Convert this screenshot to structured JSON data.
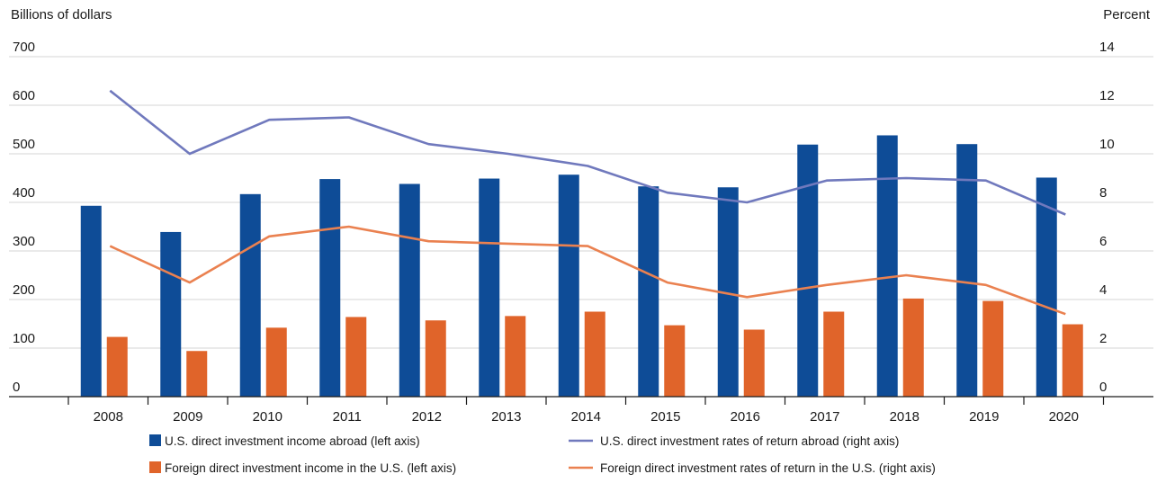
{
  "chart_data": {
    "type": "bar",
    "left_axis_title": "Billions of dollars",
    "right_axis_title": "Percent",
    "categories": [
      "2008",
      "2009",
      "2010",
      "2011",
      "2012",
      "2013",
      "2014",
      "2015",
      "2016",
      "2017",
      "2018",
      "2019",
      "2020"
    ],
    "left_ylim": [
      0,
      700
    ],
    "left_ticks": [
      "0",
      "100",
      "200",
      "300",
      "400",
      "500",
      "600",
      "700"
    ],
    "right_ylim": [
      0,
      14
    ],
    "right_ticks": [
      "0",
      "2",
      "4",
      "6",
      "8",
      "10",
      "12",
      "14"
    ],
    "grid": true,
    "legend_position": "bottom",
    "series": [
      {
        "name": "U.S. direct investment income abroad (left axis)",
        "kind": "bar",
        "axis": "left",
        "color": "#0e4c97",
        "values": [
          393,
          339,
          417,
          448,
          438,
          449,
          457,
          433,
          431,
          519,
          538,
          520,
          451
        ]
      },
      {
        "name": "Foreign direct investment income in the U.S. (left axis)",
        "kind": "bar",
        "axis": "left",
        "color": "#e0642a",
        "values": [
          123,
          94,
          142,
          164,
          157,
          166,
          175,
          147,
          138,
          175,
          202,
          197,
          149
        ]
      },
      {
        "name": "U.S. direct investment rates of return abroad (right axis)",
        "kind": "line",
        "axis": "right",
        "color": "#7079bd",
        "values": [
          12.6,
          10.0,
          11.4,
          11.5,
          10.4,
          10.0,
          9.5,
          8.4,
          8.0,
          8.9,
          9.0,
          8.9,
          7.5
        ]
      },
      {
        "name": "Foreign direct investment rates of return in the U.S. (right axis)",
        "kind": "line",
        "axis": "right",
        "color": "#ea8150",
        "values": [
          6.2,
          4.7,
          6.6,
          7.0,
          6.4,
          6.3,
          6.2,
          4.7,
          4.1,
          4.6,
          5.0,
          4.6,
          3.4
        ]
      }
    ]
  }
}
